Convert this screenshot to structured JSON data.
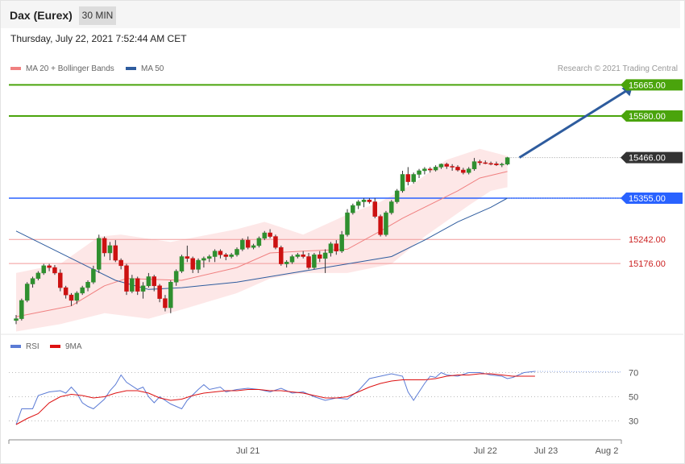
{
  "header": {
    "instrument": "Dax (Eurex)",
    "interval": "30 MIN"
  },
  "timestamp": "Thursday, July 22, 2021 7:52:44 AM CET",
  "credit": "Research © 2021 Trading Central",
  "colors": {
    "up": "#2f8f2f",
    "down": "#cc1111",
    "ma20": "#f08080",
    "ma50": "#2e5c9e",
    "resistance": "#4aa40c",
    "pivot": "#2962ff",
    "support": "#cc2222",
    "rsi": "#5b7bd5",
    "rsi_ma": "#dd1111"
  },
  "chart_data": [
    {
      "type": "candlestick",
      "legend": [
        {
          "label": "MA 20 + Bollinger Bands",
          "color": "#f08080"
        },
        {
          "label": "MA 50",
          "color": "#2e5c9e"
        }
      ],
      "ylim": [
        14980,
        15710
      ],
      "levels": [
        {
          "value": 15665,
          "label": "15665.00",
          "kind": "resistance"
        },
        {
          "value": 15580,
          "label": "15580.00",
          "kind": "resistance"
        },
        {
          "value": 15466,
          "label": "15466.00",
          "kind": "last"
        },
        {
          "value": 15355,
          "label": "15355.00",
          "kind": "pivot"
        },
        {
          "value": 15242,
          "label": "15242.00",
          "kind": "support"
        },
        {
          "value": 15176,
          "label": "15176.00",
          "kind": "support"
        }
      ],
      "candles": [
        [
          15020,
          15035,
          15010,
          15025
        ],
        [
          15025,
          15080,
          15020,
          15075
        ],
        [
          15075,
          15125,
          15070,
          15120
        ],
        [
          15120,
          15140,
          15110,
          15135
        ],
        [
          15135,
          15155,
          15130,
          15150
        ],
        [
          15150,
          15175,
          15145,
          15170
        ],
        [
          15170,
          15175,
          15155,
          15165
        ],
        [
          15165,
          15172,
          15145,
          15150
        ],
        [
          15150,
          15160,
          15100,
          15110
        ],
        [
          15110,
          15115,
          15080,
          15090
        ],
        [
          15090,
          15095,
          15060,
          15075
        ],
        [
          15075,
          15100,
          15065,
          15095
        ],
        [
          15095,
          15115,
          15090,
          15110
        ],
        [
          15110,
          15130,
          15100,
          15125
        ],
        [
          15125,
          15170,
          15120,
          15160
        ],
        [
          15160,
          15255,
          15150,
          15245
        ],
        [
          15245,
          15250,
          15195,
          15205
        ],
        [
          15205,
          15235,
          15185,
          15225
        ],
        [
          15225,
          15240,
          15180,
          15185
        ],
        [
          15185,
          15190,
          15160,
          15170
        ],
        [
          15170,
          15175,
          15090,
          15100
        ],
        [
          15100,
          15145,
          15095,
          15135
        ],
        [
          15135,
          15140,
          15090,
          15100
        ],
        [
          15100,
          15125,
          15080,
          15115
        ],
        [
          15115,
          15150,
          15110,
          15140
        ],
        [
          15140,
          15145,
          15100,
          15115
        ],
        [
          15115,
          15120,
          15070,
          15080
        ],
        [
          15080,
          15090,
          15045,
          15055
        ],
        [
          15055,
          15130,
          15040,
          15125
        ],
        [
          15125,
          15160,
          15115,
          15155
        ],
        [
          15155,
          15200,
          15150,
          15195
        ],
        [
          15195,
          15225,
          15180,
          15190
        ],
        [
          15190,
          15195,
          15150,
          15160
        ],
        [
          15160,
          15190,
          15150,
          15185
        ],
        [
          15185,
          15195,
          15165,
          15190
        ],
        [
          15190,
          15200,
          15180,
          15195
        ],
        [
          15195,
          15215,
          15180,
          15210
        ],
        [
          15210,
          15215,
          15190,
          15200
        ],
        [
          15200,
          15205,
          15185,
          15195
        ],
        [
          15195,
          15205,
          15190,
          15200
        ],
        [
          15200,
          15220,
          15195,
          15215
        ],
        [
          15215,
          15245,
          15210,
          15240
        ],
        [
          15240,
          15250,
          15215,
          15220
        ],
        [
          15220,
          15230,
          15215,
          15225
        ],
        [
          15225,
          15250,
          15220,
          15245
        ],
        [
          15245,
          15265,
          15240,
          15260
        ],
        [
          15260,
          15270,
          15245,
          15250
        ],
        [
          15250,
          15255,
          15215,
          15220
        ],
        [
          15220,
          15225,
          15170,
          15175
        ],
        [
          15175,
          15185,
          15165,
          15180
        ],
        [
          15180,
          15200,
          15175,
          15195
        ],
        [
          15195,
          15205,
          15190,
          15200
        ],
        [
          15200,
          15210,
          15190,
          15195
        ],
        [
          15195,
          15205,
          15160,
          15165
        ],
        [
          15165,
          15205,
          15160,
          15200
        ],
        [
          15200,
          15210,
          15180,
          15190
        ],
        [
          15190,
          15215,
          15150,
          15205
        ],
        [
          15205,
          15235,
          15195,
          15230
        ],
        [
          15230,
          15240,
          15200,
          15210
        ],
        [
          15210,
          15265,
          15205,
          15255
        ],
        [
          15255,
          15325,
          15250,
          15315
        ],
        [
          15315,
          15340,
          15310,
          15335
        ],
        [
          15335,
          15350,
          15325,
          15345
        ],
        [
          15345,
          15355,
          15330,
          15350
        ],
        [
          15350,
          15355,
          15340,
          15345
        ],
        [
          15345,
          15355,
          15300,
          15305
        ],
        [
          15305,
          15310,
          15250,
          15255
        ],
        [
          15255,
          15320,
          15250,
          15315
        ],
        [
          15315,
          15350,
          15310,
          15345
        ],
        [
          15345,
          15380,
          15340,
          15375
        ],
        [
          15375,
          15430,
          15370,
          15420
        ],
        [
          15420,
          15440,
          15390,
          15400
        ],
        [
          15400,
          15425,
          15395,
          15420
        ],
        [
          15420,
          15435,
          15410,
          15430
        ],
        [
          15430,
          15440,
          15420,
          15435
        ],
        [
          15435,
          15440,
          15425,
          15432
        ],
        [
          15432,
          15445,
          15428,
          15440
        ],
        [
          15440,
          15450,
          15435,
          15448
        ],
        [
          15448,
          15452,
          15435,
          15442
        ],
        [
          15442,
          15448,
          15430,
          15440
        ],
        [
          15440,
          15445,
          15428,
          15432
        ],
        [
          15432,
          15438,
          15420,
          15425
        ],
        [
          15425,
          15440,
          15420,
          15435
        ],
        [
          15435,
          15465,
          15430,
          15455
        ],
        [
          15455,
          15460,
          15445,
          15452
        ],
        [
          15452,
          15458,
          15448,
          15450
        ],
        [
          15450,
          15455,
          15445,
          15449
        ],
        [
          15449,
          15455,
          15443,
          15446
        ],
        [
          15446,
          15452,
          15440,
          15448
        ],
        [
          15448,
          15468,
          15445,
          15466
        ]
      ],
      "ma20": [
        [
          0,
          15030
        ],
        [
          10,
          15060
        ],
        [
          16,
          15115
        ],
        [
          20,
          15135
        ],
        [
          30,
          15130
        ],
        [
          40,
          15165
        ],
        [
          46,
          15205
        ],
        [
          52,
          15210
        ],
        [
          60,
          15215
        ],
        [
          66,
          15265
        ],
        [
          70,
          15300
        ],
        [
          80,
          15375
        ],
        [
          84,
          15410
        ],
        [
          89,
          15428
        ]
      ],
      "bb_upper": [
        [
          0,
          15150
        ],
        [
          8,
          15175
        ],
        [
          15,
          15250
        ],
        [
          19,
          15255
        ],
        [
          28,
          15235
        ],
        [
          40,
          15270
        ],
        [
          45,
          15290
        ],
        [
          52,
          15255
        ],
        [
          60,
          15310
        ],
        [
          66,
          15345
        ],
        [
          72,
          15395
        ],
        [
          78,
          15460
        ],
        [
          84,
          15490
        ],
        [
          89,
          15470
        ]
      ],
      "bb_lower": [
        [
          0,
          14990
        ],
        [
          8,
          15010
        ],
        [
          16,
          15040
        ],
        [
          24,
          15025
        ],
        [
          30,
          15050
        ],
        [
          40,
          15095
        ],
        [
          46,
          15135
        ],
        [
          52,
          15150
        ],
        [
          60,
          15150
        ],
        [
          68,
          15175
        ],
        [
          74,
          15250
        ],
        [
          82,
          15335
        ],
        [
          86,
          15375
        ],
        [
          89,
          15385
        ]
      ],
      "ma50": [
        [
          0,
          15265
        ],
        [
          10,
          15190
        ],
        [
          18,
          15130
        ],
        [
          24,
          15105
        ],
        [
          30,
          15110
        ],
        [
          40,
          15125
        ],
        [
          50,
          15150
        ],
        [
          60,
          15175
        ],
        [
          68,
          15195
        ],
        [
          74,
          15240
        ],
        [
          80,
          15290
        ],
        [
          86,
          15330
        ],
        [
          89,
          15355
        ]
      ],
      "arrow": {
        "from": [
          90,
          15466
        ],
        "to": [
          104,
          15665
        ]
      }
    },
    {
      "type": "line",
      "legend": [
        {
          "label": "RSI",
          "color": "#5b7bd5"
        },
        {
          "label": "9MA",
          "color": "#dd1111"
        }
      ],
      "ylim": [
        15,
        85
      ],
      "yticks": [
        70,
        50,
        30
      ],
      "xticks": [
        {
          "i": 42,
          "label": "Jul 21"
        },
        {
          "i": 85,
          "label": "Jul 22"
        },
        {
          "i": 96,
          "label": "Jul 23"
        },
        {
          "i": 107,
          "label": "Aug 2"
        }
      ],
      "rsi": [
        [
          0,
          27
        ],
        [
          1,
          40
        ],
        [
          3,
          40
        ],
        [
          4,
          51
        ],
        [
          6,
          54
        ],
        [
          8,
          55
        ],
        [
          9,
          53
        ],
        [
          10,
          58
        ],
        [
          11,
          53
        ],
        [
          12,
          45
        ],
        [
          13,
          42
        ],
        [
          14,
          40
        ],
        [
          15,
          44
        ],
        [
          16,
          48
        ],
        [
          17,
          55
        ],
        [
          18,
          60
        ],
        [
          19,
          68
        ],
        [
          20,
          62
        ],
        [
          22,
          56
        ],
        [
          23,
          58
        ],
        [
          24,
          50
        ],
        [
          25,
          45
        ],
        [
          26,
          50
        ],
        [
          28,
          44
        ],
        [
          30,
          40
        ],
        [
          31,
          47
        ],
        [
          33,
          56
        ],
        [
          34,
          60
        ],
        [
          35,
          56
        ],
        [
          37,
          58
        ],
        [
          38,
          54
        ],
        [
          40,
          56
        ],
        [
          42,
          57
        ],
        [
          44,
          56
        ],
        [
          46,
          54
        ],
        [
          48,
          57
        ],
        [
          50,
          53
        ],
        [
          52,
          54
        ],
        [
          54,
          50
        ],
        [
          56,
          47
        ],
        [
          58,
          49
        ],
        [
          60,
          48
        ],
        [
          62,
          55
        ],
        [
          64,
          65
        ],
        [
          66,
          67
        ],
        [
          68,
          69
        ],
        [
          70,
          67
        ],
        [
          71,
          54
        ],
        [
          72,
          47
        ],
        [
          73,
          54
        ],
        [
          74,
          61
        ],
        [
          75,
          67
        ],
        [
          76,
          66
        ],
        [
          77,
          70
        ],
        [
          78,
          68
        ],
        [
          80,
          67
        ],
        [
          82,
          70
        ],
        [
          84,
          70
        ],
        [
          86,
          68
        ],
        [
          88,
          67
        ],
        [
          89,
          65
        ],
        [
          90,
          66
        ],
        [
          91,
          68
        ],
        [
          92,
          70
        ],
        [
          94,
          71
        ]
      ],
      "rsi_ma": [
        [
          0,
          27
        ],
        [
          2,
          32
        ],
        [
          4,
          36
        ],
        [
          6,
          45
        ],
        [
          8,
          50
        ],
        [
          10,
          52
        ],
        [
          12,
          51
        ],
        [
          14,
          49
        ],
        [
          16,
          50
        ],
        [
          18,
          53
        ],
        [
          20,
          55
        ],
        [
          22,
          55
        ],
        [
          24,
          53
        ],
        [
          26,
          49
        ],
        [
          28,
          47
        ],
        [
          30,
          48
        ],
        [
          32,
          51
        ],
        [
          34,
          53
        ],
        [
          36,
          54
        ],
        [
          38,
          55
        ],
        [
          40,
          55
        ],
        [
          42,
          56
        ],
        [
          44,
          56
        ],
        [
          46,
          55
        ],
        [
          48,
          55
        ],
        [
          50,
          54
        ],
        [
          52,
          53
        ],
        [
          54,
          51
        ],
        [
          56,
          49
        ],
        [
          58,
          49
        ],
        [
          60,
          50
        ],
        [
          62,
          54
        ],
        [
          64,
          58
        ],
        [
          66,
          61
        ],
        [
          68,
          63
        ],
        [
          70,
          64
        ],
        [
          72,
          64
        ],
        [
          74,
          64
        ],
        [
          76,
          65
        ],
        [
          78,
          67
        ],
        [
          80,
          68
        ],
        [
          82,
          68
        ],
        [
          84,
          69
        ],
        [
          86,
          69
        ],
        [
          88,
          68
        ],
        [
          90,
          67
        ],
        [
          92,
          67
        ],
        [
          94,
          67
        ]
      ]
    }
  ]
}
